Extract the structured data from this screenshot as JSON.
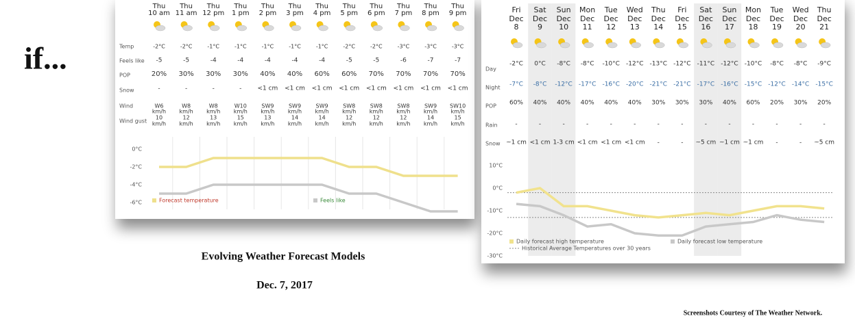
{
  "slide": {
    "heading": "if...",
    "caption": "Evolving Weather Forecast Models",
    "date": "Dec. 7, 2017",
    "credit": "Screenshots Courtesy of The Weather Network."
  },
  "hourly": {
    "columns": [
      {
        "day": "Thu",
        "time": "10 am"
      },
      {
        "day": "Thu",
        "time": "11 am"
      },
      {
        "day": "Thu",
        "time": "12 pm"
      },
      {
        "day": "Thu",
        "time": "1 pm"
      },
      {
        "day": "Thu",
        "time": "2 pm"
      },
      {
        "day": "Thu",
        "time": "3 pm"
      },
      {
        "day": "Thu",
        "time": "4 pm"
      },
      {
        "day": "Thu",
        "time": "5 pm"
      },
      {
        "day": "Thu",
        "time": "6 pm"
      },
      {
        "day": "Thu",
        "time": "7 pm"
      },
      {
        "day": "Thu",
        "time": "8 pm"
      },
      {
        "day": "Thu",
        "time": "9 pm"
      }
    ],
    "row_labels": {
      "temp": "Temp",
      "feels": "Feels like",
      "pop": "POP",
      "snow": "Snow",
      "wind": "Wind",
      "gust": "Wind gust"
    },
    "temp": [
      "-2°C",
      "-2°C",
      "-1°C",
      "-1°C",
      "-1°C",
      "-1°C",
      "-1°C",
      "-2°C",
      "-2°C",
      "-3°C",
      "-3°C",
      "-3°C"
    ],
    "feels": [
      "-5",
      "-5",
      "-4",
      "-4",
      "-4",
      "-4",
      "-4",
      "-5",
      "-5",
      "-6",
      "-7",
      "-7"
    ],
    "pop": [
      "20%",
      "30%",
      "30%",
      "30%",
      "40%",
      "40%",
      "60%",
      "60%",
      "70%",
      "70%",
      "70%",
      "70%"
    ],
    "snow": [
      "-",
      "-",
      "-",
      "-",
      "<1 cm",
      "<1 cm",
      "<1 cm",
      "<1 cm",
      "<1 cm",
      "<1 cm",
      "<1 cm",
      "<1 cm"
    ],
    "wind": [
      "W6",
      "W8",
      "W8",
      "W10",
      "SW9",
      "SW9",
      "SW9",
      "SW8",
      "SW8",
      "SW8",
      "SW9",
      "SW10"
    ],
    "gust": [
      "10",
      "12",
      "13",
      "15",
      "13",
      "14",
      "14",
      "12",
      "12",
      "12",
      "14",
      "15"
    ],
    "unit": "km/h"
  },
  "daily": {
    "columns": [
      {
        "weekday": "Fri",
        "month": "Dec",
        "day": "8"
      },
      {
        "weekday": "Sat",
        "month": "Dec",
        "day": "9"
      },
      {
        "weekday": "Sun",
        "month": "Dec",
        "day": "10"
      },
      {
        "weekday": "Mon",
        "month": "Dec",
        "day": "11"
      },
      {
        "weekday": "Tue",
        "month": "Dec",
        "day": "12"
      },
      {
        "weekday": "Wed",
        "month": "Dec",
        "day": "13"
      },
      {
        "weekday": "Thu",
        "month": "Dec",
        "day": "14"
      },
      {
        "weekday": "Fri",
        "month": "Dec",
        "day": "15"
      },
      {
        "weekday": "Sat",
        "month": "Dec",
        "day": "16"
      },
      {
        "weekday": "Sun",
        "month": "Dec",
        "day": "17"
      },
      {
        "weekday": "Mon",
        "month": "Dec",
        "day": "18"
      },
      {
        "weekday": "Tue",
        "month": "Dec",
        "day": "19"
      },
      {
        "weekday": "Wed",
        "month": "Dec",
        "day": "20"
      },
      {
        "weekday": "Thu",
        "month": "Dec",
        "day": "21"
      }
    ],
    "row_labels": {
      "day": "Day",
      "night": "Night",
      "pop": "POP",
      "rain": "Rain",
      "snow": "Snow"
    },
    "day": [
      "-2°C",
      "0°C",
      "-8°C",
      "-8°C",
      "-10°C",
      "-12°C",
      "-13°C",
      "-12°C",
      "-11°C",
      "-12°C",
      "-10°C",
      "-8°C",
      "-8°C",
      "-9°C"
    ],
    "night": [
      "-7°C",
      "-8°C",
      "-12°C",
      "-17°C",
      "-16°C",
      "-20°C",
      "-21°C",
      "-21°C",
      "-17°C",
      "-16°C",
      "-15°C",
      "-12°C",
      "-14°C",
      "-15°C"
    ],
    "pop": [
      "60%",
      "40%",
      "40%",
      "40%",
      "40%",
      "40%",
      "30%",
      "30%",
      "30%",
      "40%",
      "60%",
      "20%",
      "30%",
      "20%"
    ],
    "rain": [
      "-",
      "-",
      "-",
      "-",
      "-",
      "-",
      "-",
      "-",
      "-",
      "-",
      "-",
      "-",
      "-",
      "-"
    ],
    "snow": [
      "~1 cm",
      "<1 cm",
      "1-3 cm",
      "<1 cm",
      "<1 cm",
      "<1 cm",
      "-",
      "-",
      "~5 cm",
      "~1 cm",
      "~1 cm",
      "-",
      "-",
      "~5 cm"
    ]
  },
  "chart_data": [
    {
      "type": "line",
      "ylim": [
        -7.5,
        0.5
      ],
      "yticks": [
        {
          "value": 0,
          "label": "0°C"
        },
        {
          "value": -2,
          "label": "-2°C"
        },
        {
          "value": -4,
          "label": "-4°C"
        },
        {
          "value": -6,
          "label": "-6°C"
        }
      ],
      "series": [
        {
          "name": "Forecast temperature",
          "color": "#efe08c",
          "label_color": "#c0392b",
          "values": [
            -2,
            -2,
            -1,
            -1,
            -1,
            -1,
            -1,
            -2,
            -2,
            -3,
            -3,
            -3
          ]
        },
        {
          "name": "Feels like",
          "color": "#c8c8c8",
          "label_color": "#3a8a3a",
          "values": [
            -5,
            -5,
            -4,
            -4,
            -4,
            -4,
            -4,
            -5,
            -5,
            -6,
            -7,
            -7
          ]
        }
      ]
    },
    {
      "type": "line",
      "ylim": [
        -30,
        10
      ],
      "yticks": [
        {
          "value": 10,
          "label": "10°C"
        },
        {
          "value": 0,
          "label": "0°C"
        },
        {
          "value": -10,
          "label": "-10°C"
        },
        {
          "value": -20,
          "label": "-20°C"
        },
        {
          "value": -30,
          "label": "-30°C"
        }
      ],
      "series": [
        {
          "name": "Daily forecast high temperature",
          "color": "#f1e28d",
          "label_color": "#555555",
          "values": [
            -2,
            0,
            -8,
            -8,
            -10,
            -12,
            -13,
            -12,
            -11,
            -12,
            -10,
            -8,
            -8,
            -9
          ]
        },
        {
          "name": "Daily forecast low temperature",
          "color": "#c8c8c8",
          "label_color": "#555555",
          "values": [
            -7,
            -8,
            -12,
            -17,
            -16,
            -20,
            -21,
            -21,
            -17,
            -16,
            -15,
            -12,
            -14,
            -15
          ]
        }
      ],
      "reference_lines": {
        "name": "Historical Average Temperatures over 30 years",
        "color": "#888888",
        "values": [
          -2,
          -13
        ]
      }
    }
  ]
}
